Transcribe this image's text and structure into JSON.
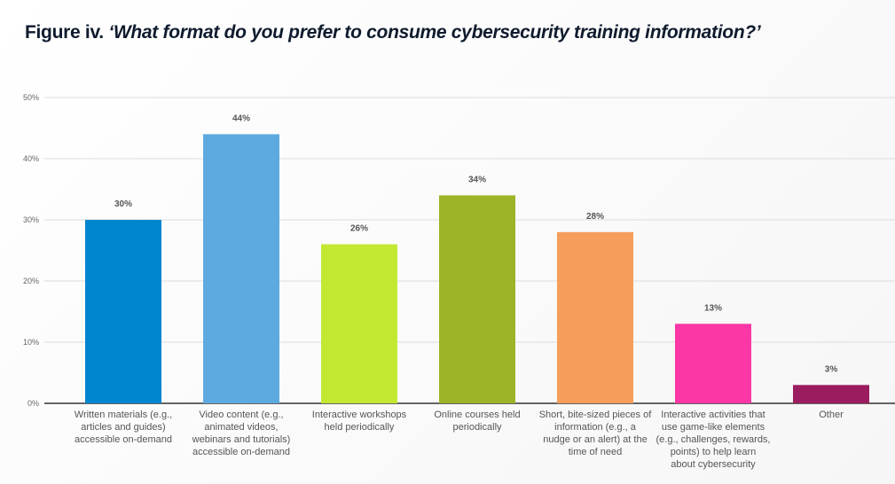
{
  "chart_data": {
    "type": "bar",
    "title_prefix": "Figure iv.",
    "title_question": "‘What format do you prefer to consume cybersecurity training information?’",
    "ylim": [
      0,
      50
    ],
    "yticks": [
      "0%",
      "10%",
      "20%",
      "30%",
      "40%",
      "50%"
    ],
    "categories": [
      [
        "Written materials (e.g.,",
        "articles and guides)",
        "accessible on-demand"
      ],
      [
        "Video content (e.g.,",
        "animated videos,",
        "webinars and tutorials)",
        "accessible on-demand"
      ],
      [
        "Interactive workshops",
        "held periodically"
      ],
      [
        "Online courses held",
        "periodically"
      ],
      [
        "Short, bite-sized pieces of",
        "information (e.g., a",
        "nudge or an alert) at the",
        "time of need"
      ],
      [
        "Interactive activities that",
        "use game-like elements",
        "(e.g., challenges, rewards,",
        "points) to help learn",
        "about cybersecurity"
      ],
      [
        "Other"
      ]
    ],
    "values": [
      30,
      44,
      26,
      34,
      28,
      13,
      3
    ],
    "labels": [
      "30%",
      "44%",
      "26%",
      "34%",
      "28%",
      "13%",
      "3%"
    ],
    "colors": [
      "#0085CF",
      "#5DAAE0",
      "#C2E832",
      "#9DB428",
      "#F59E5B",
      "#FB37A6",
      "#9C1D5F"
    ],
    "grid": true
  }
}
